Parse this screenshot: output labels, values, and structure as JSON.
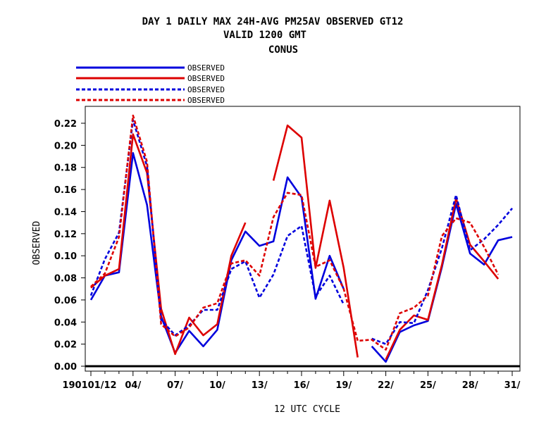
{
  "chart_data": {
    "type": "line",
    "title_lines": [
      "DAY 1 DAILY MAX   24H-AVG PM25AV OBSERVED GT12",
      "VALID 1200 GMT",
      "CONUS"
    ],
    "xlabel": "12 UTC CYCLE",
    "ylabel": "OBSERVED",
    "ylim": [
      0,
      0.23
    ],
    "xlim": [
      0.8,
      31.2
    ],
    "yticks": [
      0.0,
      0.02,
      0.04,
      0.06,
      0.08,
      0.1,
      0.12,
      0.14,
      0.16,
      0.18,
      0.2,
      0.22
    ],
    "ytick_labels": [
      "0.00",
      "0.02",
      "0.04",
      "0.06",
      "0.08",
      "0.10",
      "0.12",
      "0.14",
      "0.16",
      "0.18",
      "0.20",
      "0.22"
    ],
    "xticks": [
      1,
      4,
      7,
      10,
      13,
      16,
      19,
      22,
      25,
      28,
      31
    ],
    "xtick_labels": [
      "190101/12",
      "04/",
      "07/",
      "10/",
      "13/",
      "16/",
      "19/",
      "22/",
      "25/",
      "28/",
      "31/"
    ],
    "legend_placement": "top-left",
    "grid": false,
    "series": [
      {
        "name": "OBSERVED",
        "color": "#0000dd",
        "style": "solid",
        "x": [
          1,
          2,
          3,
          4,
          5,
          6,
          7,
          8,
          9,
          10,
          11,
          12,
          13,
          14,
          15,
          16,
          17,
          18,
          19,
          20,
          21,
          22,
          23,
          24,
          25,
          26,
          27,
          28,
          29,
          30,
          31
        ],
        "values": [
          0.06,
          0.082,
          0.085,
          0.193,
          0.146,
          0.045,
          0.012,
          0.032,
          0.018,
          0.033,
          0.096,
          0.122,
          0.109,
          0.113,
          0.171,
          0.153,
          0.061,
          0.1,
          0.07,
          null,
          0.018,
          0.004,
          0.031,
          0.037,
          0.041,
          0.09,
          0.147,
          0.102,
          0.092,
          0.114,
          0.117
        ]
      },
      {
        "name": "OBSERVED",
        "color": "#dd0000",
        "style": "solid",
        "x": [
          1,
          2,
          3,
          4,
          5,
          6,
          7,
          8,
          9,
          10,
          11,
          12,
          13,
          14,
          15,
          16,
          17,
          18,
          19,
          20,
          21,
          22,
          23,
          24,
          25,
          26,
          27,
          28,
          29,
          30,
          31
        ],
        "values": [
          0.071,
          0.082,
          0.088,
          0.21,
          0.175,
          0.052,
          0.011,
          0.044,
          0.028,
          0.038,
          0.1,
          0.13,
          null,
          0.168,
          0.218,
          0.207,
          0.089,
          0.15,
          0.089,
          0.008,
          null,
          0.006,
          0.033,
          0.046,
          0.042,
          0.092,
          0.152,
          0.11,
          0.095,
          0.079,
          null
        ]
      },
      {
        "name": "OBSERVED",
        "color": "#0000dd",
        "style": "dashed",
        "x": [
          1,
          2,
          3,
          4,
          5,
          6,
          7,
          8,
          9,
          10,
          11,
          12,
          13,
          14,
          15,
          16,
          17,
          18,
          19,
          20,
          21,
          22,
          23,
          24,
          25,
          26,
          27,
          28,
          29,
          30,
          31
        ],
        "values": [
          0.064,
          0.097,
          0.121,
          0.223,
          0.181,
          0.042,
          0.028,
          0.037,
          0.051,
          0.051,
          0.088,
          0.095,
          0.062,
          0.083,
          0.118,
          0.127,
          0.063,
          0.082,
          0.056,
          null,
          0.025,
          0.02,
          0.04,
          0.039,
          0.069,
          0.107,
          0.155,
          0.105,
          0.115,
          0.128,
          0.143
        ]
      },
      {
        "name": "OBSERVED",
        "color": "#dd0000",
        "style": "dashed",
        "x": [
          1,
          2,
          3,
          4,
          5,
          6,
          7,
          8,
          9,
          10,
          11,
          12,
          13,
          14,
          15,
          16,
          17,
          18,
          19,
          20,
          21,
          22,
          23,
          24,
          25,
          26,
          27,
          28,
          29,
          30,
          31
        ],
        "values": [
          0.072,
          0.084,
          0.117,
          0.227,
          0.185,
          0.038,
          0.027,
          0.035,
          0.053,
          0.057,
          0.093,
          0.096,
          0.082,
          0.135,
          0.157,
          0.155,
          0.09,
          0.096,
          0.07,
          0.023,
          0.024,
          0.015,
          0.048,
          0.053,
          0.064,
          0.118,
          0.134,
          0.13,
          0.108,
          0.083,
          null
        ]
      }
    ]
  }
}
